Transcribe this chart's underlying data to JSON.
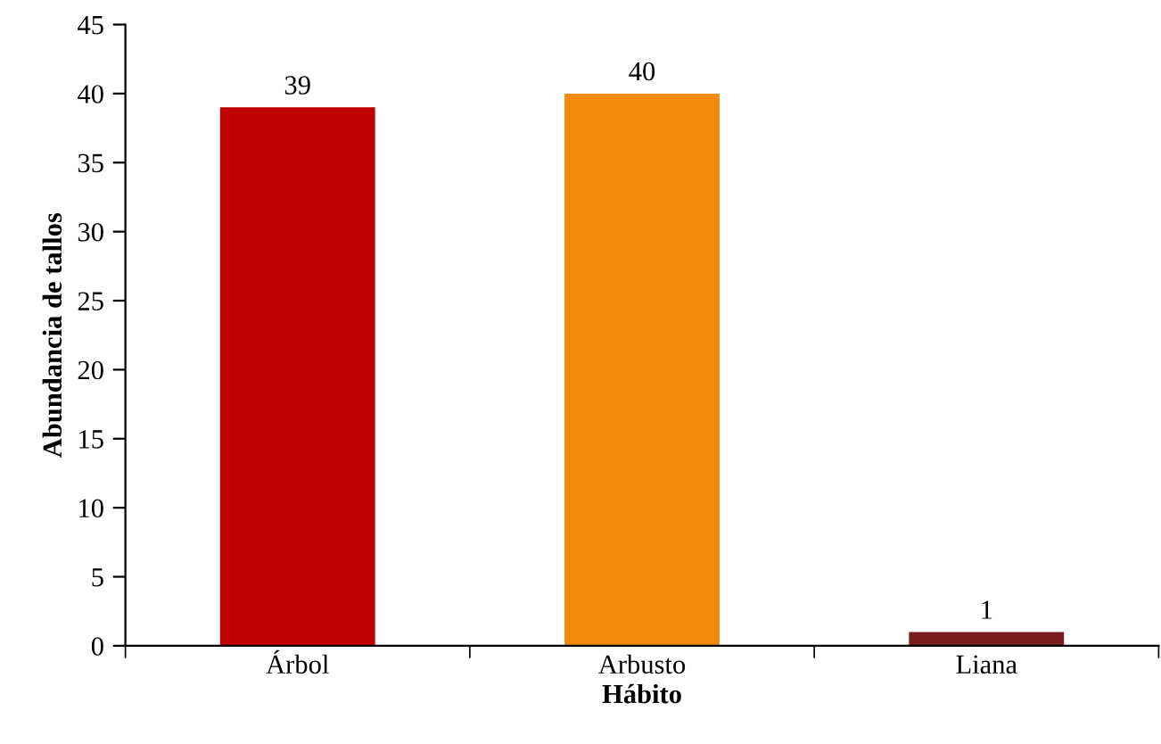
{
  "chart_data": {
    "type": "bar",
    "xlabel": "Hábito",
    "ylabel": "Abundancia de tallos",
    "categories": [
      "Árbol",
      "Arbusto",
      "Liana"
    ],
    "values": [
      39,
      40,
      1
    ],
    "colors": [
      "#c00000",
      "#f28a0c",
      "#7b1c1c"
    ],
    "ylim": [
      0,
      45
    ],
    "yticks": [
      0,
      5,
      10,
      15,
      20,
      25,
      30,
      35,
      40,
      45
    ],
    "data_labels": true,
    "grid": false,
    "legend": false
  }
}
